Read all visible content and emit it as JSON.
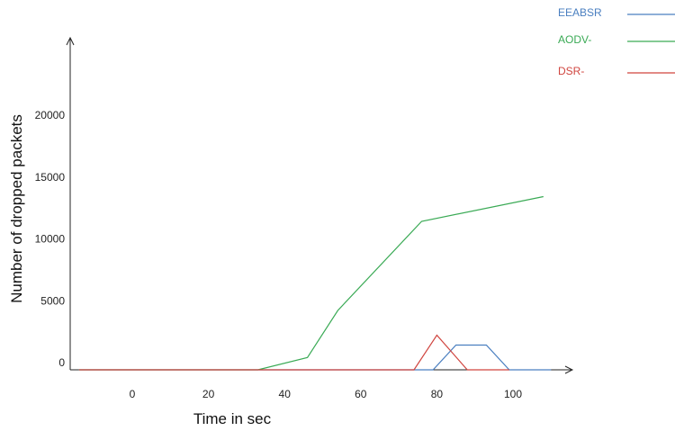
{
  "chart_data": {
    "type": "line",
    "xlabel": "Time in sec",
    "ylabel": "Number of dropped packets",
    "x_ticks": [
      0,
      20,
      40,
      60,
      80,
      100
    ],
    "y_ticks": [
      0,
      5000,
      10000,
      15000,
      20000
    ],
    "xlim": [
      -14,
      115
    ],
    "ylim": [
      0,
      25000
    ],
    "grid": false,
    "legend_position": "top-right",
    "series": [
      {
        "name": "EEABSR",
        "color": "#4a7fc0",
        "points": [
          [
            -14,
            0
          ],
          [
            79,
            0
          ],
          [
            85,
            2000
          ],
          [
            93,
            2000
          ],
          [
            99,
            0
          ],
          [
            110,
            0
          ]
        ]
      },
      {
        "name": "AODV-",
        "color": "#3aaa55",
        "points": [
          [
            -14,
            0
          ],
          [
            33,
            0
          ],
          [
            46,
            1000
          ],
          [
            54,
            4800
          ],
          [
            76,
            12000
          ],
          [
            108,
            14000
          ]
        ]
      },
      {
        "name": "DSR-",
        "color": "#d0453f",
        "points": [
          [
            -14,
            0
          ],
          [
            74,
            0
          ],
          [
            80,
            2800
          ],
          [
            88,
            0
          ],
          [
            99,
            0
          ]
        ]
      }
    ]
  }
}
